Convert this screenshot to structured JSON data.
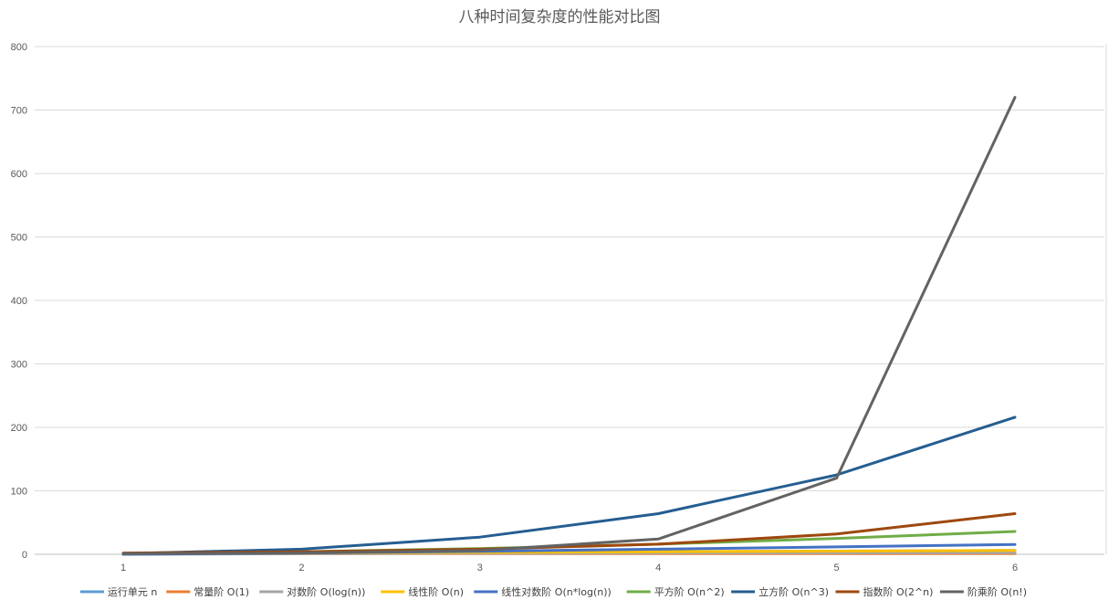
{
  "chart_data": {
    "type": "line",
    "title": "八种时间复杂度的性能对比图",
    "xlabel": "",
    "ylabel": "",
    "categories": [
      "1",
      "2",
      "3",
      "4",
      "5",
      "6"
    ],
    "ylim": [
      0,
      800
    ],
    "yticks": [
      0,
      100,
      200,
      300,
      400,
      500,
      600,
      700,
      800
    ],
    "grid": true,
    "legend_position": "bottom",
    "series": [
      {
        "name": "运行单元 n",
        "color": "#5B9BD5",
        "values": [
          1,
          2,
          3,
          4,
          5,
          6
        ]
      },
      {
        "name": "常量阶 O(1)",
        "color": "#ED7D31",
        "values": [
          1,
          1,
          1,
          1,
          1,
          1
        ]
      },
      {
        "name": "对数阶 O(log(n))",
        "color": "#A5A5A5",
        "values": [
          0,
          1,
          1.58,
          2,
          2.32,
          2.58
        ]
      },
      {
        "name": "线性阶 O(n)",
        "color": "#FFC000",
        "values": [
          1,
          2,
          3,
          4,
          5,
          6
        ]
      },
      {
        "name": "线性对数阶 O(n*log(n))",
        "color": "#4472C4",
        "values": [
          0,
          2,
          4.75,
          8,
          11.61,
          15.51
        ]
      },
      {
        "name": "平方阶 O(n^2)",
        "color": "#70AD47",
        "values": [
          1,
          4,
          9,
          16,
          25,
          36
        ]
      },
      {
        "name": "立方阶 O(n^3)",
        "color": "#255E91",
        "values": [
          1,
          8,
          27,
          64,
          125,
          216
        ]
      },
      {
        "name": "指数阶 O(2^n)",
        "color": "#9E480E",
        "values": [
          2,
          4,
          8,
          16,
          32,
          64
        ]
      },
      {
        "name": "阶乘阶 O(n!)",
        "color": "#636363",
        "values": [
          1,
          2,
          6,
          24,
          120,
          720
        ]
      }
    ]
  }
}
